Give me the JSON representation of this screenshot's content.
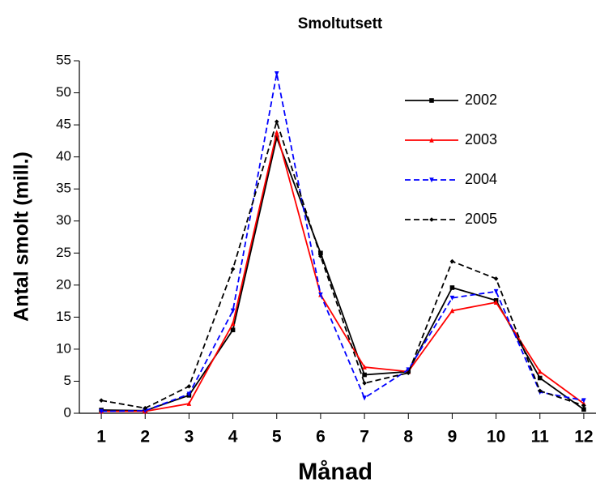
{
  "chart_data": {
    "type": "line",
    "title": "Smoltutsett",
    "x_label": "Månad",
    "y_label": "Antal smolt (mill.)",
    "x": [
      1,
      2,
      3,
      4,
      5,
      6,
      7,
      8,
      9,
      10,
      11,
      12
    ],
    "xlim": [
      0.5,
      12.5
    ],
    "xticks": [
      1,
      2,
      3,
      4,
      5,
      6,
      7,
      8,
      9,
      10,
      11,
      12
    ],
    "ylim": [
      0,
      55
    ],
    "yticks": [
      0,
      5,
      10,
      15,
      20,
      25,
      30,
      35,
      40,
      45,
      50,
      55
    ],
    "series": [
      {
        "name": "2002",
        "color": "#000000",
        "dash": "solid",
        "marker": "square",
        "values": [
          0.5,
          0.4,
          2.8,
          13,
          43,
          25,
          6,
          6.5,
          19.6,
          17.6,
          5.5,
          0.6
        ]
      },
      {
        "name": "2003",
        "color": "#ff0000",
        "dash": "solid",
        "marker": "triangle",
        "values": [
          0.3,
          0.3,
          1.5,
          14,
          43.8,
          18.5,
          7.2,
          6.5,
          16,
          17.3,
          6.5,
          1.5
        ]
      },
      {
        "name": "2004",
        "color": "#0000ff",
        "dash": "dashed",
        "marker": "triangle-down",
        "values": [
          0.3,
          0.4,
          3,
          16,
          53,
          18.5,
          2.4,
          6.8,
          18,
          19,
          3.3,
          2
        ]
      },
      {
        "name": "2005",
        "color": "#000000",
        "dash": "dashed",
        "marker": "diamond",
        "values": [
          2,
          0.8,
          4.2,
          22.5,
          45.5,
          24.5,
          4.7,
          6.3,
          23.7,
          21,
          3.5,
          1.2
        ]
      }
    ]
  }
}
